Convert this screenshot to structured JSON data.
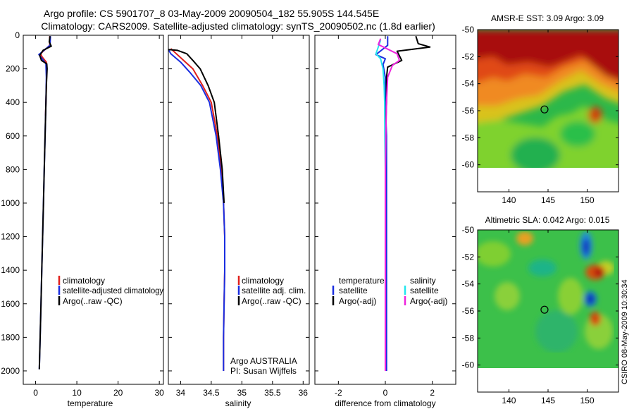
{
  "title": {
    "line1": "Argo profile: CS 5901707_8 03-May-2009 20090504_182 55.905S 144.545E",
    "line2": "Climatology: CARS2009. Satellite-adjusted climatology: synTS_20090502.nc (1.8d earlier)"
  },
  "stamp": "CSIRO 08-May-2009 10:30:34",
  "colors": {
    "climatology": "#e0201c",
    "satellite": "#1a2ee0",
    "argo": "#000000",
    "satellite_salinity": "#22e6ee",
    "argo_salinity_diff": "#ee22dd",
    "map_land_nodata": "#ffffff"
  },
  "chart_data": [
    {
      "type": "line",
      "name": "temperature-profile",
      "xlabel": "temperature",
      "ylabel": "",
      "xlim": [
        -3,
        31
      ],
      "ylim": [
        2080,
        0
      ],
      "x_ticks": [
        0,
        10,
        20,
        30
      ],
      "y_ticks": [
        0,
        200,
        400,
        600,
        800,
        1000,
        1200,
        1400,
        1600,
        1800,
        2000
      ],
      "legend": [
        "climatology",
        "satellite-adjusted climatology",
        "Argo(..raw -QC)"
      ],
      "legend_placement": "lower-right",
      "series": [
        {
          "name": "climatology",
          "color": "#e0201c",
          "points": [
            [
              3.4,
              5
            ],
            [
              3.4,
              60
            ],
            [
              1.2,
              110
            ],
            [
              1.6,
              130
            ],
            [
              2.6,
              160
            ],
            [
              2.7,
              200
            ],
            [
              2.6,
              300
            ],
            [
              2.5,
              400
            ],
            [
              2.4,
              480
            ]
          ]
        },
        {
          "name": "satellite-adjusted climatology",
          "color": "#1a2ee0",
          "points": [
            [
              3.6,
              5
            ],
            [
              3.5,
              60
            ],
            [
              0.8,
              115
            ],
            [
              1.6,
              140
            ],
            [
              2.5,
              170
            ],
            [
              2.6,
              250
            ],
            [
              2.5,
              400
            ],
            [
              2.3,
              600
            ],
            [
              2.1,
              800
            ],
            [
              1.9,
              1000
            ],
            [
              1.7,
              1200
            ],
            [
              1.5,
              1400
            ],
            [
              1.3,
              1600
            ],
            [
              1.1,
              1800
            ],
            [
              0.9,
              1990
            ]
          ]
        },
        {
          "name": "Argo(..raw -QC)",
          "color": "#000000",
          "points": [
            [
              3.5,
              5
            ],
            [
              3.3,
              40
            ],
            [
              3.8,
              65
            ],
            [
              1.8,
              90
            ],
            [
              1.0,
              120
            ],
            [
              1.4,
              150
            ],
            [
              2.7,
              170
            ],
            [
              2.8,
              200
            ],
            [
              2.6,
              300
            ],
            [
              2.5,
              400
            ],
            [
              2.3,
              600
            ],
            [
              2.1,
              800
            ],
            [
              1.9,
              1000
            ],
            [
              1.7,
              1200
            ],
            [
              1.5,
              1400
            ],
            [
              1.3,
              1600
            ],
            [
              1.1,
              1800
            ],
            [
              0.9,
              1990
            ]
          ]
        }
      ]
    },
    {
      "type": "line",
      "name": "salinity-profile",
      "xlabel": "salinity",
      "ylabel": "",
      "xlim": [
        33.8,
        36.1
      ],
      "ylim": [
        2080,
        0
      ],
      "x_ticks": [
        34,
        34.5,
        35,
        35.5,
        36
      ],
      "legend": [
        "climatology",
        "satellite adj. clim.",
        "Argo(..raw -QC)"
      ],
      "legend_placement": "lower-right",
      "annotations": [
        "Argo AUSTRALIA",
        "PI: Susan Wijffels"
      ],
      "series": [
        {
          "name": "climatology",
          "color": "#e0201c",
          "points": [
            [
              33.84,
              80
            ],
            [
              33.9,
              100
            ],
            [
              34.05,
              150
            ],
            [
              34.2,
              200
            ],
            [
              34.36,
              300
            ],
            [
              34.5,
              400
            ],
            [
              34.6,
              600
            ],
            [
              34.66,
              800
            ],
            [
              34.7,
              1000
            ],
            [
              34.72,
              1200
            ],
            [
              34.72,
              1400
            ],
            [
              34.71,
              1600
            ],
            [
              34.7,
              1800
            ],
            [
              34.7,
              2000
            ]
          ]
        },
        {
          "name": "satellite adj. clim.",
          "color": "#1a2ee0",
          "points": [
            [
              33.8,
              85
            ],
            [
              33.84,
              110
            ],
            [
              34.0,
              160
            ],
            [
              34.15,
              220
            ],
            [
              34.33,
              300
            ],
            [
              34.47,
              400
            ],
            [
              34.58,
              600
            ],
            [
              34.65,
              800
            ],
            [
              34.7,
              1000
            ],
            [
              34.72,
              1200
            ],
            [
              34.72,
              1400
            ],
            [
              34.71,
              1600
            ],
            [
              34.7,
              1800
            ],
            [
              34.7,
              2000
            ]
          ]
        },
        {
          "name": "Argo(..raw -QC)",
          "color": "#000000",
          "points": [
            [
              33.8,
              85
            ],
            [
              33.95,
              90
            ],
            [
              34.1,
              110
            ],
            [
              34.2,
              150
            ],
            [
              34.32,
              200
            ],
            [
              34.45,
              300
            ],
            [
              34.55,
              400
            ],
            [
              34.62,
              600
            ],
            [
              34.68,
              800
            ],
            [
              34.71,
              1000
            ]
          ]
        }
      ]
    },
    {
      "type": "line",
      "name": "difference-profile",
      "xlabel": "difference from climatology",
      "ylabel": "",
      "xlim": [
        -3,
        3
      ],
      "ylim": [
        2080,
        0
      ],
      "x_ticks": [
        -2,
        0,
        2
      ],
      "legend": [
        "temperature",
        "satellite",
        "Argo(-adj)",
        "salinity",
        "satellite",
        "Argo(-adj)"
      ],
      "legend_placement": "lower-middle",
      "series": [
        {
          "name": "temperature satellite",
          "color": "#1a2ee0",
          "points": [
            [
              0.1,
              5
            ],
            [
              0.1,
              60
            ],
            [
              -0.4,
              115
            ],
            [
              0.0,
              140
            ],
            [
              -0.1,
              175
            ],
            [
              0.0,
              250
            ],
            [
              0.0,
              400
            ],
            [
              0.05,
              600
            ],
            [
              0.05,
              800
            ],
            [
              0.05,
              1000
            ],
            [
              0.05,
              1200
            ],
            [
              0.05,
              1400
            ],
            [
              0.05,
              1600
            ],
            [
              0.05,
              1800
            ],
            [
              0.05,
              2000
            ]
          ]
        },
        {
          "name": "temperature Argo(-adj)",
          "color": "#000000",
          "points": [
            [
              1.3,
              5
            ],
            [
              1.4,
              50
            ],
            [
              1.9,
              70
            ],
            [
              0.5,
              95
            ],
            [
              0.7,
              150
            ],
            [
              0.1,
              190
            ],
            [
              0.05,
              250
            ],
            [
              0.05,
              400
            ],
            [
              0.0,
              600
            ],
            [
              0.0,
              800
            ],
            [
              0.0,
              1000
            ]
          ]
        },
        {
          "name": "salinity satellite",
          "color": "#22e6ee",
          "points": [
            [
              -0.2,
              30
            ],
            [
              -0.3,
              70
            ],
            [
              -0.4,
              110
            ],
            [
              -0.2,
              140
            ],
            [
              -0.1,
              200
            ],
            [
              -0.05,
              300
            ],
            [
              -0.03,
              400
            ],
            [
              -0.02,
              600
            ],
            [
              0.0,
              800
            ],
            [
              0.0,
              1000
            ],
            [
              0.0,
              1400
            ],
            [
              0.0,
              2000
            ]
          ]
        },
        {
          "name": "salinity Argo(-adj)",
          "color": "#ee22dd",
          "points": [
            [
              -0.2,
              20
            ],
            [
              -0.3,
              55
            ],
            [
              0.5,
              110
            ],
            [
              0.6,
              150
            ],
            [
              0.3,
              180
            ],
            [
              0.1,
              250
            ],
            [
              0.05,
              400
            ],
            [
              0.02,
              600
            ],
            [
              0.0,
              800
            ],
            [
              0.0,
              1000
            ],
            [
              0.0,
              1400
            ],
            [
              0.0,
              2000
            ]
          ]
        }
      ]
    },
    {
      "type": "heatmap",
      "name": "sst-map",
      "title": "AMSR-E SST: 3.09 Argo: 3.09",
      "xlim": [
        136,
        154
      ],
      "ylim": [
        -62,
        -50
      ],
      "x_ticks": [
        140,
        145,
        150
      ],
      "y_ticks": [
        -50,
        -52,
        -54,
        -56,
        -58,
        -60
      ],
      "marker": {
        "lon": 144.545,
        "lat": -55.905
      },
      "data_extent_lat_min": -60
    },
    {
      "type": "heatmap",
      "name": "sla-map",
      "title": "Altimetric SLA: 0.042 Argo: 0.015",
      "xlim": [
        136,
        154
      ],
      "ylim": [
        -62,
        -50
      ],
      "x_ticks": [
        140,
        145,
        150
      ],
      "y_ticks": [
        -50,
        -52,
        -54,
        -56,
        -58,
        -60
      ],
      "marker": {
        "lon": 144.545,
        "lat": -55.905
      },
      "data_extent_lat_min": -60
    }
  ]
}
